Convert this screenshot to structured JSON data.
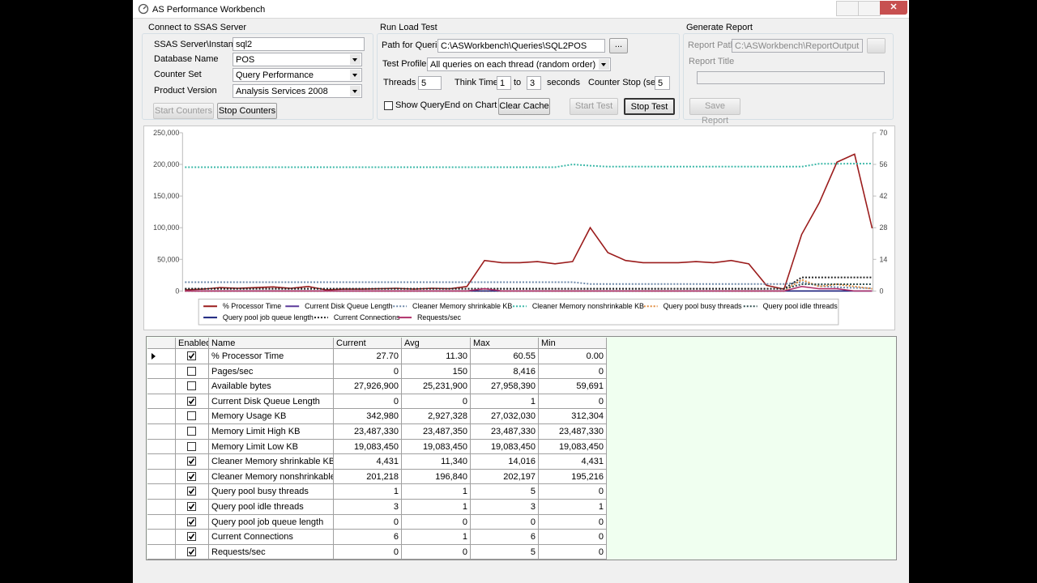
{
  "window": {
    "title": "AS Performance Workbench"
  },
  "connect": {
    "title": "Connect to SSAS Server",
    "server_label": "SSAS Server\\Instance",
    "server": "sql2",
    "database_label": "Database Name",
    "database": "POS",
    "counter_set_label": "Counter Set",
    "counter_set": "Query Performance",
    "product_label": "Product Version",
    "product": "Analysis Services 2008",
    "start_button": "Start Counters",
    "stop_button": "Stop Counters"
  },
  "load_test": {
    "title": "Run Load Test",
    "path_label": "Path for Queries",
    "path": "C:\\ASWorkbench\\Queries\\SQL2POS",
    "browse": "...",
    "profile_label": "Test Profile",
    "profile": "All queries on each thread (random order)",
    "threads_label": "Threads",
    "threads": "5",
    "think_label": "Think Time",
    "think_from": "1",
    "to_label": "to",
    "think_to": "3",
    "seconds_label": "seconds",
    "counter_stop_label": "Counter Stop (sec)",
    "counter_stop": "5",
    "show_queryend": "Show QueryEnd on Chart",
    "clear_cache": "Clear Cache",
    "start_test": "Start Test",
    "stop_test": "Stop Test"
  },
  "report": {
    "title": "Generate Report",
    "path_label": "Report Path",
    "path": "C:\\ASWorkbench\\ReportOutput",
    "title_label": "Report Title",
    "save": "Save Report"
  },
  "chart_data": {
    "type": "line",
    "ylim": [
      0,
      250000
    ],
    "yticks": [
      0,
      {
        "value": 50000,
        "label": "50,000"
      },
      {
        "value": 100000,
        "label": "100,000"
      },
      {
        "value": 150000,
        "label": "150,000"
      },
      {
        "value": 200000,
        "label": "200,000"
      },
      {
        "value": 250000,
        "label": "250,000"
      }
    ],
    "y2lim": [
      0,
      70
    ],
    "y2ticks": [
      0,
      14,
      28,
      42,
      56,
      70
    ],
    "series": [
      {
        "name": "% Processor Time",
        "color": "#9b1c1c",
        "style": "solid",
        "axis": "y2",
        "values": [
          0.5,
          0.8,
          1.5,
          1.2,
          1.5,
          1.8,
          1.2,
          2,
          0.5,
          0.8,
          0.8,
          1,
          1.2,
          0.8,
          1.2,
          1,
          2,
          13.5,
          12.5,
          12.5,
          13,
          12,
          13,
          28,
          17,
          13.5,
          12.5,
          12.5,
          12.5,
          13,
          12.5,
          13.5,
          12,
          2.5,
          0.8,
          25,
          39,
          57,
          60.5,
          27.7
        ]
      },
      {
        "name": "Current Disk Queue Length",
        "color": "#5b3a9a",
        "style": "solid",
        "axis": "y2",
        "values": [
          0,
          0,
          0,
          0,
          0,
          0,
          0,
          0,
          0,
          0,
          0,
          0,
          0,
          0,
          0,
          0,
          0,
          0,
          0,
          0,
          0,
          0,
          0,
          0,
          0,
          0,
          0,
          0,
          0,
          0,
          0,
          0,
          0,
          0,
          0,
          0,
          0,
          0,
          0,
          0
        ]
      },
      {
        "name": "Cleaner Memory shrinkable KB",
        "color": "#6b87a8",
        "style": "dotted",
        "values": [
          14000,
          14000,
          14000,
          14000,
          14000,
          14000,
          14000,
          14000,
          14000,
          14000,
          14000,
          14000,
          14000,
          14000,
          14000,
          14000,
          14000,
          14000,
          14000,
          14000,
          14000,
          14000,
          14000,
          11000,
          11000,
          11000,
          11000,
          11000,
          11000,
          11000,
          11000,
          11000,
          11000,
          11000,
          11000,
          14000,
          8000,
          6000,
          5000,
          4431
        ]
      },
      {
        "name": "Cleaner Memory nonshrinkable KB",
        "color": "#3cb8a8",
        "style": "dotted",
        "values": [
          195500,
          195500,
          195500,
          195500,
          195500,
          195500,
          195500,
          195500,
          195500,
          195500,
          195500,
          195500,
          195500,
          195500,
          195500,
          195500,
          195500,
          195500,
          195500,
          195500,
          195500,
          195500,
          200000,
          198000,
          196500,
          196500,
          196500,
          196500,
          196500,
          196500,
          196500,
          196500,
          196500,
          196500,
          196500,
          196500,
          201000,
          201000,
          201200,
          201218
        ]
      },
      {
        "name": "Query pool busy threads",
        "color": "#e08a3c",
        "style": "dotted",
        "axis": "y2",
        "values": [
          0,
          0,
          0,
          0,
          0,
          0,
          0,
          0,
          0,
          0,
          0,
          0,
          0,
          0,
          0,
          0,
          0,
          0,
          0,
          0,
          0,
          0,
          0,
          0,
          0,
          0,
          0,
          0,
          0,
          0,
          0,
          0,
          0,
          0,
          0,
          5,
          2,
          3,
          2,
          1
        ]
      },
      {
        "name": "Query pool idle threads",
        "color": "#2f4f4f",
        "style": "dotted",
        "axis": "y2",
        "values": [
          1,
          1,
          1,
          1,
          1,
          1,
          1,
          1,
          1,
          1,
          1,
          1,
          1,
          1,
          1,
          1,
          1,
          1,
          1,
          1,
          1,
          1,
          1,
          1,
          1,
          1,
          1,
          1,
          1,
          1,
          1,
          1,
          1,
          1,
          1,
          3,
          3,
          3,
          3,
          3
        ]
      },
      {
        "name": "Query pool job queue length",
        "color": "#1a237e",
        "style": "solid",
        "axis": "y2",
        "values": [
          0,
          0,
          0,
          0,
          0,
          0,
          0,
          0,
          0,
          0,
          0,
          0,
          0,
          0,
          0,
          0,
          0,
          0,
          0,
          0,
          0,
          0,
          0,
          0,
          0,
          0,
          0,
          0,
          0,
          0,
          0,
          0,
          0,
          0,
          0,
          0,
          0,
          0,
          0,
          0
        ]
      },
      {
        "name": "Current Connections",
        "color": "#222222",
        "style": "dotted",
        "axis": "y2",
        "values": [
          1,
          1,
          1,
          1,
          1,
          1,
          1,
          1,
          1,
          1,
          1,
          1,
          1,
          1,
          1,
          1,
          1,
          1,
          1,
          1,
          1,
          1,
          1,
          1,
          1,
          1,
          1,
          1,
          1,
          1,
          1,
          1,
          1,
          1,
          1,
          6,
          6,
          6,
          6,
          6
        ]
      },
      {
        "name": "Requests/sec",
        "color": "#b0306a",
        "style": "solid",
        "axis": "y2",
        "values": [
          0,
          0,
          0,
          0,
          0,
          0,
          0,
          0,
          0,
          0,
          0,
          0,
          0,
          0,
          0,
          0,
          0,
          1,
          0,
          0,
          0,
          0,
          0,
          0,
          0,
          0,
          0,
          0,
          0,
          0,
          0,
          0,
          0,
          0,
          0,
          2,
          1,
          1,
          0,
          0
        ]
      }
    ]
  },
  "table": {
    "columns": [
      "Enabled",
      "Name",
      "Current",
      "Avg",
      "Max",
      "Min"
    ],
    "rows": [
      {
        "enabled": true,
        "name": "% Processor Time",
        "current": "27.70",
        "avg": "11.30",
        "max": "60.55",
        "min": "0.00"
      },
      {
        "enabled": false,
        "name": "Pages/sec",
        "current": "0",
        "avg": "150",
        "max": "8,416",
        "min": "0"
      },
      {
        "enabled": false,
        "name": "Available bytes",
        "current": "27,926,900",
        "avg": "25,231,900",
        "max": "27,958,390",
        "min": "59,691"
      },
      {
        "enabled": true,
        "name": "Current Disk Queue Length",
        "current": "0",
        "avg": "0",
        "max": "1",
        "min": "0"
      },
      {
        "enabled": false,
        "name": "Memory Usage KB",
        "current": "342,980",
        "avg": "2,927,328",
        "max": "27,032,030",
        "min": "312,304"
      },
      {
        "enabled": false,
        "name": "Memory Limit High KB",
        "current": "23,487,330",
        "avg": "23,487,350",
        "max": "23,487,330",
        "min": "23,487,330"
      },
      {
        "enabled": false,
        "name": "Memory Limit Low KB",
        "current": "19,083,450",
        "avg": "19,083,450",
        "max": "19,083,450",
        "min": "19,083,450"
      },
      {
        "enabled": true,
        "name": "Cleaner Memory shrinkable KB",
        "current": "4,431",
        "avg": "11,340",
        "max": "14,016",
        "min": "4,431"
      },
      {
        "enabled": true,
        "name": "Cleaner Memory nonshrinkable KB",
        "current": "201,218",
        "avg": "196,840",
        "max": "202,197",
        "min": "195,216"
      },
      {
        "enabled": true,
        "name": "Query pool busy threads",
        "current": "1",
        "avg": "1",
        "max": "5",
        "min": "0"
      },
      {
        "enabled": true,
        "name": "Query pool idle threads",
        "current": "3",
        "avg": "1",
        "max": "3",
        "min": "1"
      },
      {
        "enabled": true,
        "name": "Query pool job queue length",
        "current": "0",
        "avg": "0",
        "max": "0",
        "min": "0"
      },
      {
        "enabled": true,
        "name": "Current Connections",
        "current": "6",
        "avg": "1",
        "max": "6",
        "min": "0"
      },
      {
        "enabled": true,
        "name": "Requests/sec",
        "current": "0",
        "avg": "0",
        "max": "5",
        "min": "0"
      }
    ]
  }
}
